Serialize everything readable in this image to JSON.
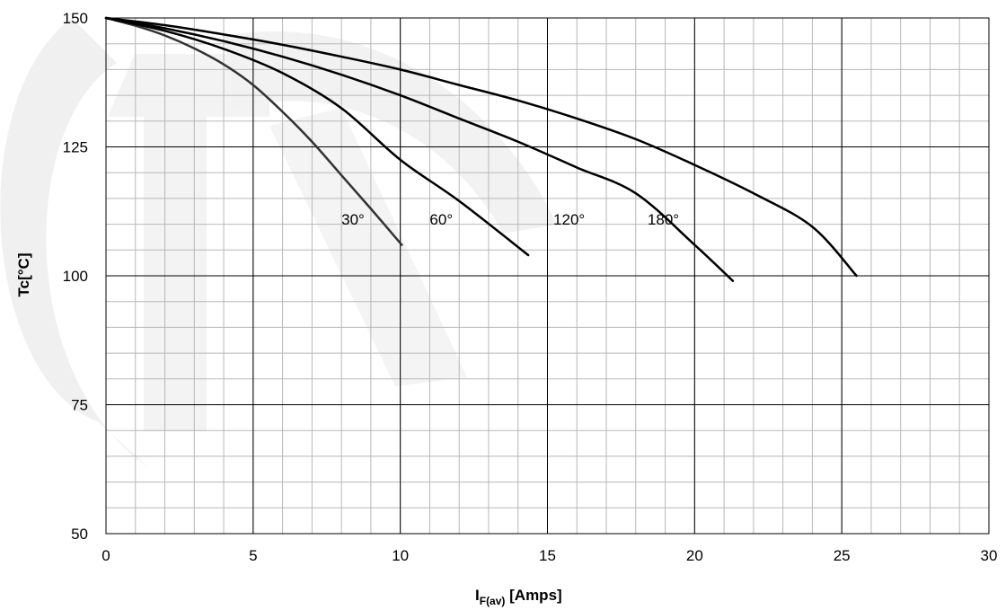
{
  "chart_data": {
    "type": "line",
    "title": "",
    "xlabel_main": "I",
    "xlabel_sub": "F(av)",
    "xlabel_unit": " [Amps]",
    "ylabel": "Tc[°C]",
    "xlim": [
      0,
      30
    ],
    "ylim": [
      50,
      150
    ],
    "x_ticks": [
      0,
      5,
      10,
      15,
      20,
      25,
      30
    ],
    "y_ticks": [
      50,
      75,
      100,
      125,
      150
    ],
    "x_tick_labels": [
      "0",
      "5",
      "10",
      "15",
      "20",
      "25",
      "30"
    ],
    "y_tick_labels": [
      "50",
      "75",
      "100",
      "125",
      "150"
    ],
    "minor_grid_x_step": 1,
    "minor_grid_y_step": 5,
    "grid": true,
    "series": [
      {
        "name": "30°",
        "label_pos": [
          8.0,
          111
        ],
        "x": [
          0,
          1,
          2,
          3,
          4,
          5,
          6,
          7,
          8,
          9,
          10.05
        ],
        "y": [
          150,
          148.5,
          146.6,
          144.1,
          141.0,
          137.0,
          131.8,
          126.0,
          119.5,
          113.0,
          106
        ]
      },
      {
        "name": "60°",
        "label_pos": [
          11.0,
          111
        ],
        "x": [
          0,
          2,
          4,
          6,
          8,
          10,
          12,
          14.35
        ],
        "y": [
          150,
          147.5,
          144.0,
          139.3,
          132.5,
          122.5,
          114.5,
          104
        ]
      },
      {
        "name": "120°",
        "label_pos": [
          15.2,
          111
        ],
        "x": [
          0,
          2,
          4,
          6,
          8,
          10,
          12,
          14,
          16,
          18,
          20,
          21.3
        ],
        "y": [
          150,
          148.0,
          145.5,
          142.5,
          139.0,
          135.0,
          130.5,
          126.0,
          121.0,
          116.0,
          106.0,
          99
        ]
      },
      {
        "name": "180°",
        "label_pos": [
          18.4,
          111
        ],
        "x": [
          0,
          2,
          4,
          6,
          8,
          10,
          12,
          14,
          16,
          18,
          20,
          22,
          24,
          25.5
        ],
        "y": [
          150,
          148.6,
          146.8,
          144.8,
          142.5,
          140.0,
          137.0,
          134.0,
          130.5,
          126.5,
          121.5,
          116.0,
          109.5,
          100
        ]
      }
    ]
  }
}
